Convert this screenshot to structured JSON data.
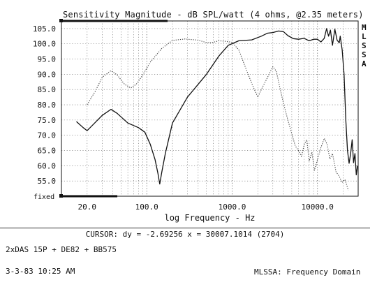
{
  "header": {
    "title": "Sensitivity Magnitude - dB SPL/watt (4 ohms, @2.35 meters)",
    "side_label": [
      "M",
      "L",
      "S",
      "S",
      "A"
    ],
    "fixed_label": "fixed"
  },
  "footer": {
    "cursor_readout": "CURSOR: dy = -2.69256 x = 30007.1014 (2704)",
    "config": "2xDAS 15P + DE82 + BB575",
    "timestamp": "3-3-83 10:25 AM",
    "mode": "MLSSA: Frequency Domain"
  },
  "chart_data": {
    "type": "line",
    "title": "Sensitivity Magnitude - dB SPL/watt (4 ohms, @2.35 meters)",
    "xlabel": "log Frequency - Hz",
    "ylabel": "",
    "xscale": "log",
    "xlim": [
      10,
      30000
    ],
    "ylim": [
      50,
      107.5
    ],
    "grid": true,
    "x_ticks": [
      {
        "value": 20,
        "label": "20.0"
      },
      {
        "value": 100,
        "label": "100.0"
      },
      {
        "value": 1000,
        "label": "1000.0"
      },
      {
        "value": 10000,
        "label": "10000.0"
      }
    ],
    "y_ticks": [
      {
        "value": 105,
        "label": "105.0"
      },
      {
        "value": 100,
        "label": "100.0"
      },
      {
        "value": 95,
        "label": "95.0"
      },
      {
        "value": 90,
        "label": "90.0"
      },
      {
        "value": 85,
        "label": "85.0"
      },
      {
        "value": 80,
        "label": "80.0"
      },
      {
        "value": 75,
        "label": "75.0"
      },
      {
        "value": 70,
        "label": "70.0"
      },
      {
        "value": 65,
        "label": "65.0"
      },
      {
        "value": 60,
        "label": "60.0"
      },
      {
        "value": 55,
        "label": "55.0"
      }
    ],
    "series": [
      {
        "style": "solid",
        "color": "#111111",
        "points": [
          [
            15,
            74.5
          ],
          [
            18,
            72.5
          ],
          [
            20,
            71.5
          ],
          [
            30,
            76.5
          ],
          [
            38,
            78.5
          ],
          [
            45,
            77.2
          ],
          [
            60,
            74
          ],
          [
            80,
            72.5
          ],
          [
            95,
            71
          ],
          [
            110,
            67
          ],
          [
            125,
            62
          ],
          [
            135,
            57.5
          ],
          [
            142,
            54
          ],
          [
            150,
            58
          ],
          [
            165,
            64
          ],
          [
            200,
            74
          ],
          [
            300,
            82.5
          ],
          [
            500,
            90
          ],
          [
            700,
            96
          ],
          [
            900,
            99.5
          ],
          [
            1200,
            101
          ],
          [
            1700,
            101.3
          ],
          [
            2200,
            102.5
          ],
          [
            2600,
            103.5
          ],
          [
            3000,
            103.7
          ],
          [
            3500,
            104.2
          ],
          [
            4000,
            104
          ],
          [
            4500,
            102.7
          ],
          [
            5200,
            101.7
          ],
          [
            6000,
            101.5
          ],
          [
            7000,
            101.8
          ],
          [
            8000,
            101
          ],
          [
            9000,
            101.5
          ],
          [
            10000,
            101.5
          ],
          [
            11000,
            100.6
          ],
          [
            12000,
            101.8
          ],
          [
            12800,
            105
          ],
          [
            13500,
            102.5
          ],
          [
            14200,
            104.5
          ],
          [
            15000,
            99.5
          ],
          [
            16000,
            104.8
          ],
          [
            17000,
            101.2
          ],
          [
            18000,
            100.3
          ],
          [
            18500,
            102.5
          ],
          [
            19500,
            98
          ],
          [
            20500,
            90
          ],
          [
            21500,
            75
          ],
          [
            22500,
            65
          ],
          [
            23500,
            60.8
          ],
          [
            24500,
            64
          ],
          [
            25500,
            68.5
          ],
          [
            26500,
            61
          ],
          [
            27500,
            64
          ],
          [
            28500,
            57
          ],
          [
            29500,
            60
          ]
        ]
      },
      {
        "style": "dotted",
        "color": "#444444",
        "points": [
          [
            20,
            80
          ],
          [
            25,
            84.5
          ],
          [
            30,
            89
          ],
          [
            38,
            91.2
          ],
          [
            45,
            89.8
          ],
          [
            55,
            86.7
          ],
          [
            65,
            85.5
          ],
          [
            75,
            86.7
          ],
          [
            90,
            89.8
          ],
          [
            110,
            94
          ],
          [
            150,
            98.5
          ],
          [
            200,
            101.1
          ],
          [
            280,
            101.6
          ],
          [
            400,
            101.2
          ],
          [
            500,
            100.4
          ],
          [
            600,
            100.5
          ],
          [
            700,
            101
          ],
          [
            850,
            100.8
          ],
          [
            1000,
            100.5
          ],
          [
            1200,
            98
          ],
          [
            1400,
            93
          ],
          [
            1700,
            87
          ],
          [
            2000,
            82.5
          ],
          [
            2200,
            85
          ],
          [
            2600,
            89
          ],
          [
            3000,
            92.5
          ],
          [
            3300,
            91
          ],
          [
            3600,
            86
          ],
          [
            4000,
            80.5
          ],
          [
            4500,
            75
          ],
          [
            5000,
            70.5
          ],
          [
            5500,
            66.5
          ],
          [
            6000,
            65
          ],
          [
            6500,
            63
          ],
          [
            7000,
            67
          ],
          [
            7500,
            68.5
          ],
          [
            8000,
            61.5
          ],
          [
            8600,
            64.5
          ],
          [
            9200,
            58.5
          ],
          [
            10000,
            62
          ],
          [
            11000,
            66
          ],
          [
            12000,
            69
          ],
          [
            13000,
            67
          ],
          [
            14000,
            62.2
          ],
          [
            15000,
            64
          ],
          [
            16500,
            58
          ],
          [
            18000,
            56.5
          ],
          [
            19500,
            54.5
          ],
          [
            21000,
            55.5
          ],
          [
            23000,
            52
          ]
        ]
      }
    ]
  }
}
